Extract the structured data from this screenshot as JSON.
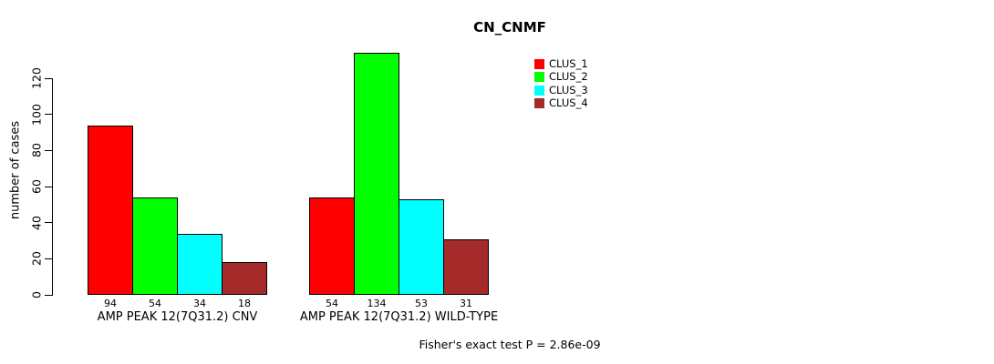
{
  "title": "CN_CNMF",
  "footer_annotation": "Fisher's exact test P = 2.86e-09",
  "chart_data": {
    "type": "bar",
    "title": "CN_CNMF",
    "xlabel": "",
    "ylabel": "number of cases",
    "categories": [
      "AMP PEAK 12(7Q31.2) CNV",
      "AMP PEAK 12(7Q31.2) WILD-TYPE"
    ],
    "series": [
      {
        "name": "CLUS_1",
        "color": "#FF0000",
        "values": [
          94,
          54
        ]
      },
      {
        "name": "CLUS_2",
        "color": "#00FF00",
        "values": [
          54,
          134
        ]
      },
      {
        "name": "CLUS_3",
        "color": "#00FFFF",
        "values": [
          34,
          53
        ]
      },
      {
        "name": "CLUS_4",
        "color": "#A52A2A",
        "values": [
          18,
          31
        ]
      }
    ],
    "yticks": [
      0,
      20,
      40,
      60,
      80,
      100,
      120
    ],
    "ylim": [
      0,
      120
    ],
    "grid": false,
    "legend_position": "top-right",
    "value_labels_below_bars": true,
    "annotation": "Fisher's exact test P = 2.86e-09"
  }
}
